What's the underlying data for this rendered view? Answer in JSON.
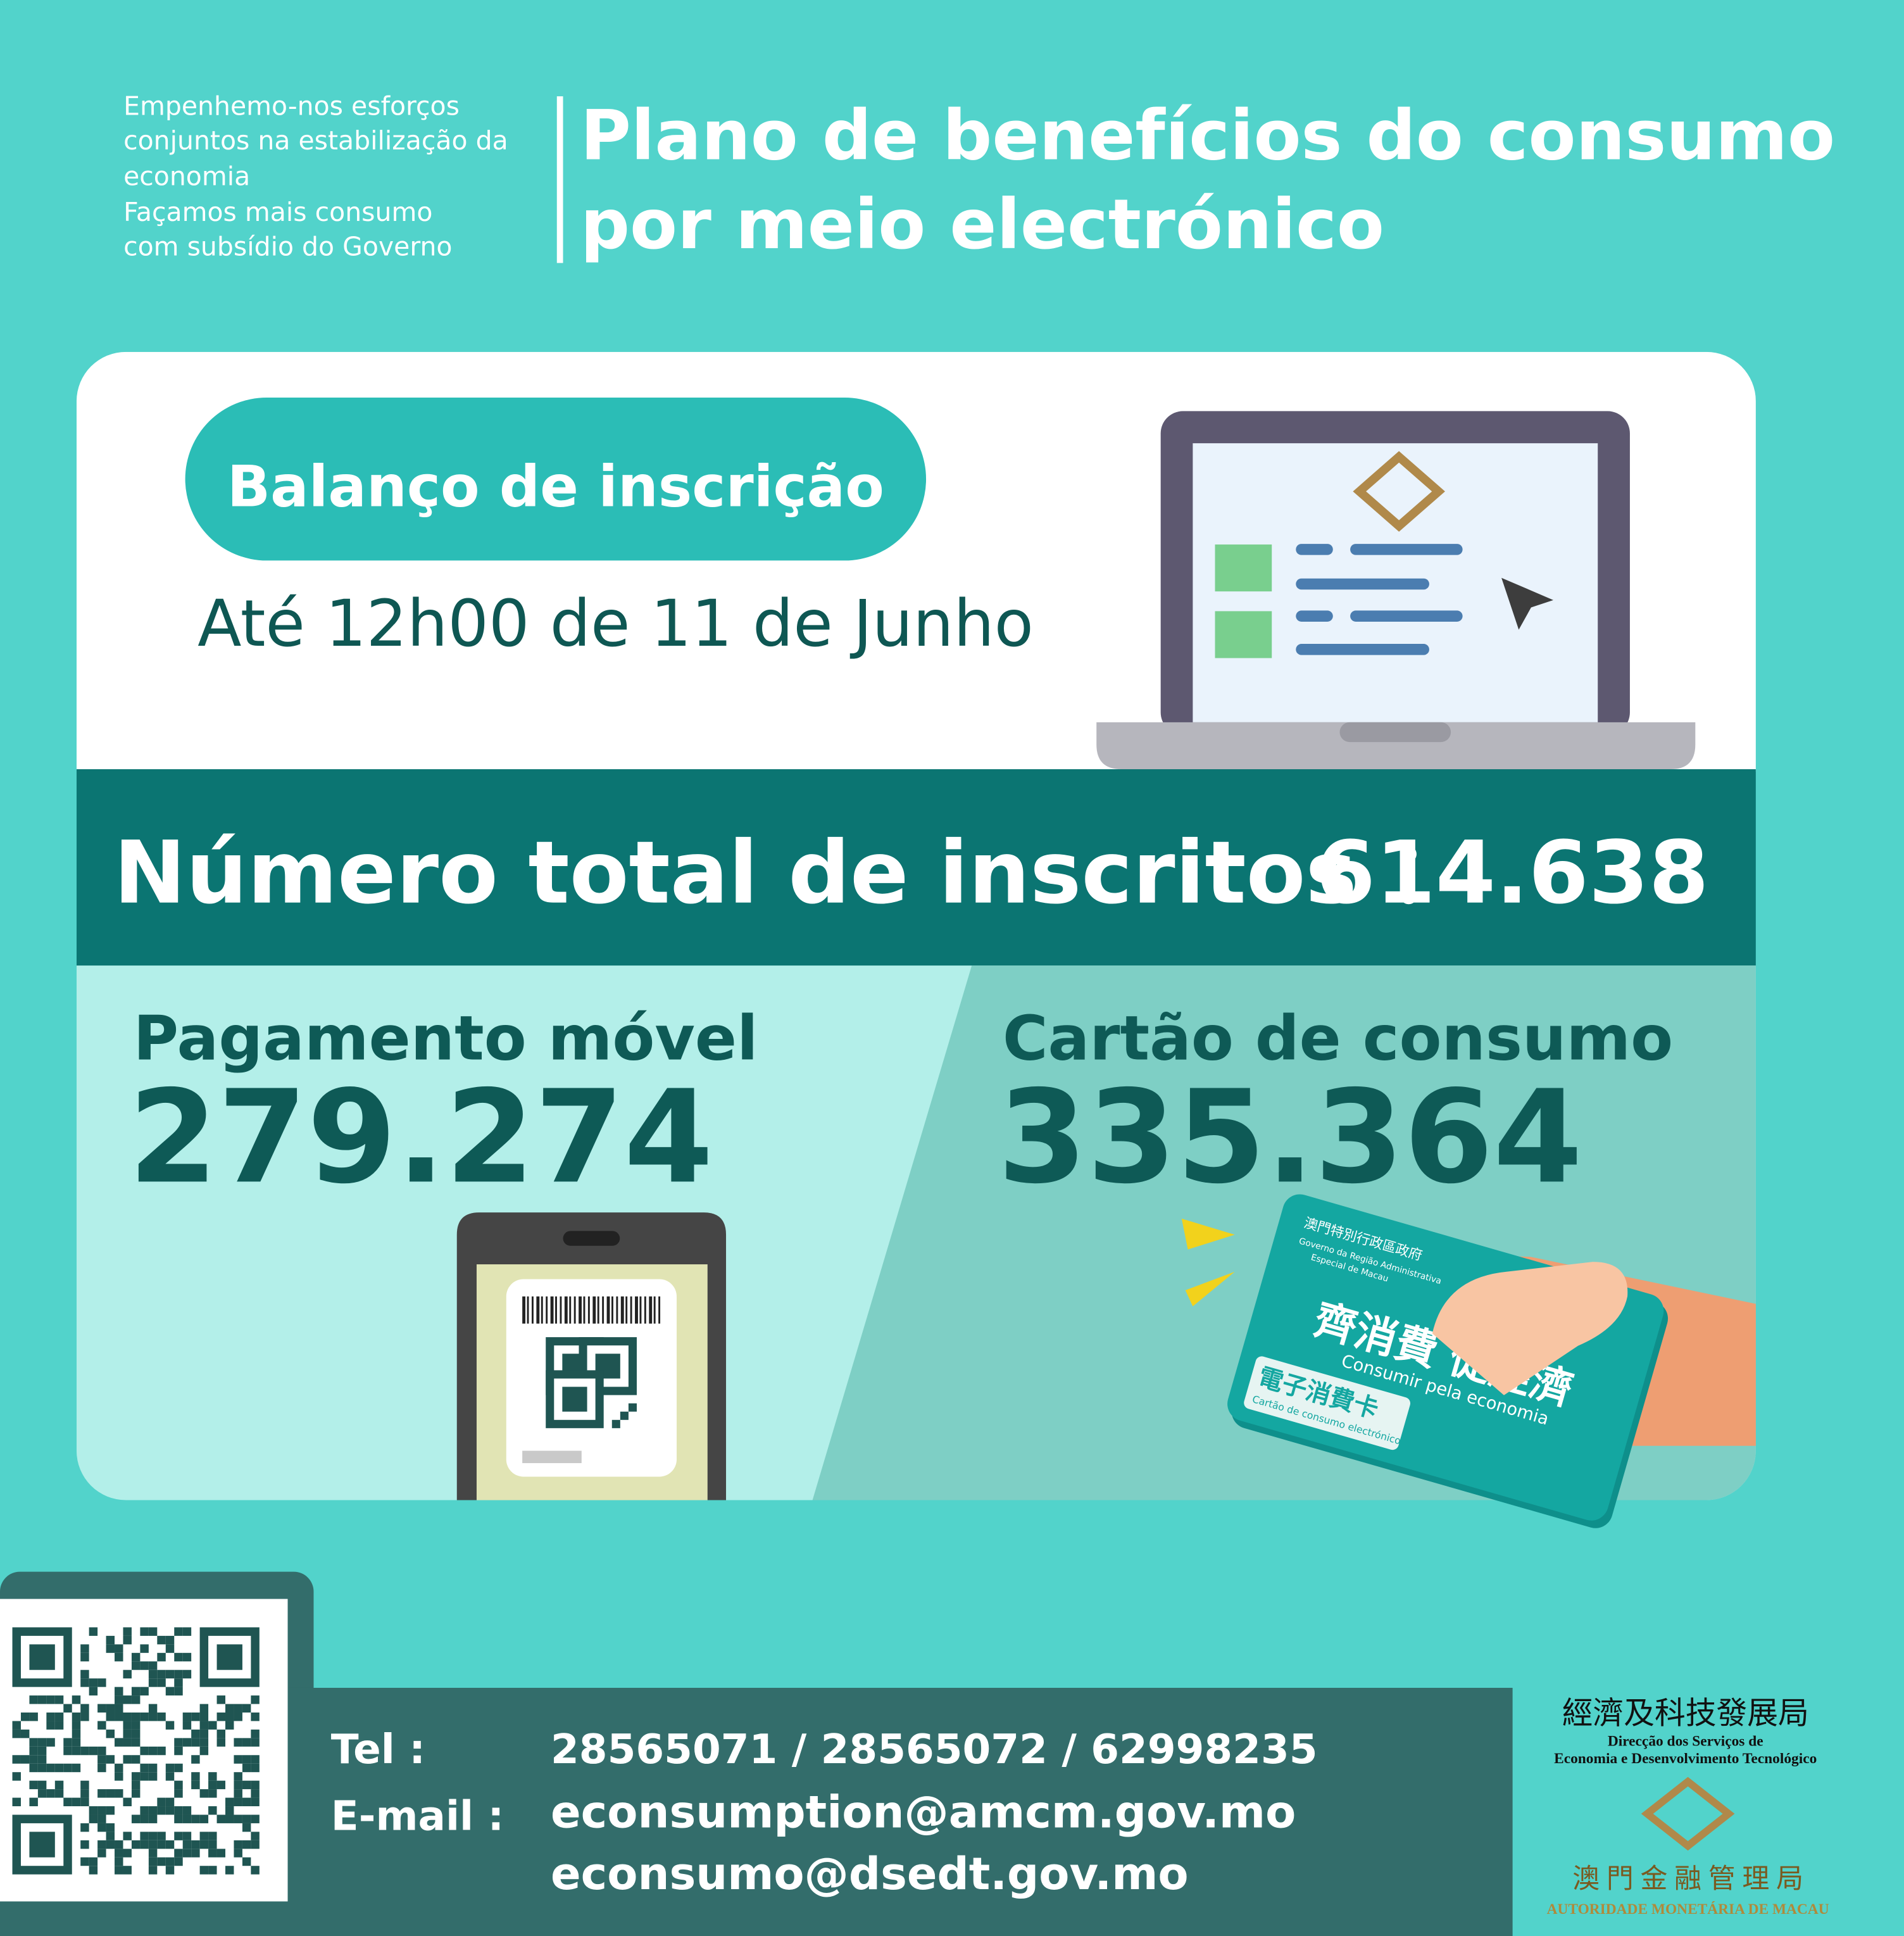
{
  "header": {
    "tagline": [
      "Empenhemo-nos esforços",
      "conjuntos na estabilização da",
      "economia",
      "Façamos mais consumo",
      "com subsídio do Governo"
    ],
    "title": [
      "Plano de benefícios do consumo",
      "por meio electrónico"
    ]
  },
  "summary": {
    "badge": "Balanço de inscrição",
    "date": "Até 12h00 de 11 de Junho",
    "total_label": "Número total de inscritos ：",
    "total_value": "614.638",
    "mobile_label": "Pagamento móvel",
    "mobile_value": "279.274",
    "card_label": "Cartão de consumo",
    "card_value": "335.364"
  },
  "card_art": {
    "issuer": "澳門特別行政區政府",
    "issuer_pt": [
      "Governo da Região Administrativa",
      "Especial de Macau"
    ],
    "slogan": "齊消費 促經濟",
    "slogan_pt": "Consumir pela economia",
    "card_name": "電子消費卡",
    "card_name_pt": "Cartão de consumo electrónico"
  },
  "contact": {
    "tel_label": "Tel :",
    "tel": "28565071 / 28565072 / 62998235",
    "email_label": "E-mail :",
    "emails": [
      "econsumption@amcm.gov.mo",
      "econsumo@dsedt.gov.mo"
    ]
  },
  "logos": {
    "dsedt_zh": "經濟及科技發展局",
    "dsedt_pt": [
      "Direcção dos Serviços de",
      "Economia e Desenvolvimento Tecnológico"
    ],
    "amcm_zh": "澳 門 金 融 管 理 局",
    "amcm_pt": "AUTORIDADE MONETÁRIA DE MACAU"
  }
}
